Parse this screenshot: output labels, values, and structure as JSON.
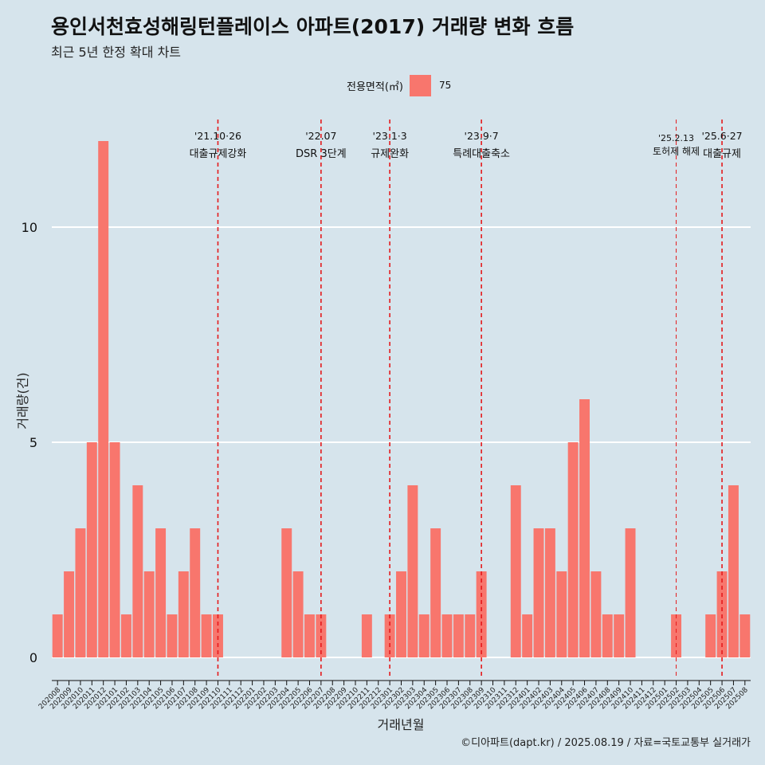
{
  "title": "용인서천효성해링턴플레이스 아파트(2017) 거래량 변화 흐름",
  "subtitle": "최근 5년 한정 확대 차트",
  "caption": "©디아파트(dapt.kr) / 2025.08.19 / 자료=국토교통부 실거래가",
  "colors": {
    "background": "#d6e4ec",
    "bar": "#f8766d",
    "grid": "#ffffff",
    "event_line": "#e41a1c"
  },
  "legend": {
    "title": "전용면적(㎡)",
    "items": [
      {
        "label": "75",
        "color": "#f8766d"
      }
    ]
  },
  "chart_data": {
    "type": "bar",
    "xlabel": "거래년월",
    "ylabel": "거래량(건)",
    "ylim": [
      -0.5,
      12.5
    ],
    "yticks": [
      0,
      5,
      10
    ],
    "grid": true,
    "legend_position": "top",
    "categories": [
      "202008",
      "202009",
      "202010",
      "202011",
      "202012",
      "202101",
      "202102",
      "202103",
      "202104",
      "202105",
      "202106",
      "202107",
      "202108",
      "202109",
      "202110",
      "202111",
      "202112",
      "202201",
      "202202",
      "202203",
      "202204",
      "202205",
      "202206",
      "202207",
      "202208",
      "202209",
      "202210",
      "202211",
      "202212",
      "202301",
      "202302",
      "202303",
      "202304",
      "202305",
      "202306",
      "202307",
      "202308",
      "202309",
      "202310",
      "202311",
      "202312",
      "202401",
      "202402",
      "202403",
      "202404",
      "202405",
      "202406",
      "202407",
      "202408",
      "202409",
      "202410",
      "202411",
      "202412",
      "202501",
      "202502",
      "202503",
      "202504",
      "202505",
      "202506",
      "202507",
      "202508"
    ],
    "series": [
      {
        "name": "75",
        "values": [
          1,
          2,
          3,
          5,
          12,
          5,
          1,
          4,
          2,
          3,
          1,
          2,
          3,
          1,
          1,
          0,
          0,
          0,
          0,
          0,
          3,
          2,
          1,
          1,
          0,
          0,
          0,
          1,
          0,
          1,
          2,
          4,
          1,
          3,
          1,
          1,
          1,
          2,
          0,
          0,
          4,
          1,
          3,
          3,
          2,
          5,
          6,
          2,
          1,
          1,
          3,
          0,
          0,
          0,
          1,
          0,
          0,
          1,
          2,
          4,
          1
        ]
      }
    ],
    "annotations": [
      {
        "at": "202110",
        "date": "'21.10·26",
        "label": "대출규제강화"
      },
      {
        "at": "202207",
        "date": "'22.07",
        "label": "DSR 3단계"
      },
      {
        "at": "202301",
        "date": "'23.1·3",
        "label": "규제완화"
      },
      {
        "at": "202309",
        "date": "'23.9·7",
        "label": "특례대출축소"
      },
      {
        "at": "202502",
        "date": "'25.2.13",
        "label": "토허제 해제"
      },
      {
        "at": "202506",
        "date": "'25.6·27",
        "label": "대출규제"
      }
    ]
  }
}
